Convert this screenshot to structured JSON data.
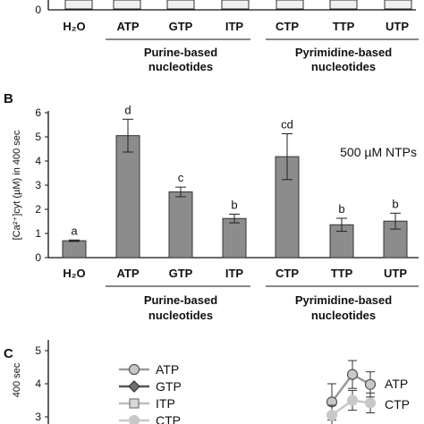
{
  "colors": {
    "bar_fill": "#8c8c8c",
    "bar_stroke": "#333333",
    "axis": "#111111",
    "line_gray": "#9a9a9a",
    "line_dark": "#555555"
  },
  "panel_a": {
    "categories": [
      "H₂O",
      "ATP",
      "GTP",
      "ITP",
      "CTP",
      "TTP",
      "UTP"
    ],
    "tick_0": "0",
    "group_purine": [
      "Purine-based",
      "nucleotides"
    ],
    "group_pyrimidine": [
      "Pyrimidine-based",
      "nucleotides"
    ]
  },
  "panel_b_label": "B",
  "panel_c_label": "C",
  "chart_data": [
    {
      "panel": "B",
      "type": "bar",
      "annotation": "500 µM NTPs",
      "ylabel": "[Ca²⁺]cyt (µM) in 400 sec",
      "ylim": [
        0,
        6
      ],
      "yticks": [
        "0",
        "1",
        "2",
        "3",
        "4",
        "5",
        "6"
      ],
      "categories": [
        "H₂O",
        "ATP",
        "GTP",
        "ITP",
        "CTP",
        "TTP",
        "UTP"
      ],
      "values": [
        0.7,
        5.05,
        2.72,
        1.62,
        4.18,
        1.36,
        1.51
      ],
      "errors": [
        0.03,
        0.68,
        0.2,
        0.18,
        0.95,
        0.27,
        0.33
      ],
      "letters": [
        "a",
        "d",
        "c",
        "b",
        "cd",
        "b",
        "b"
      ],
      "group_labels": [
        {
          "lines": [
            "Purine-based",
            "nucleotides"
          ]
        },
        {
          "lines": [
            "Pyrimidine-based",
            "nucleotides"
          ]
        }
      ]
    },
    {
      "panel": "C",
      "type": "line",
      "ylabel": "400 sec",
      "yticks": [
        "3",
        "4",
        "5"
      ],
      "ylim": [
        2.8,
        5.5
      ],
      "legend": [
        "ATP",
        "GTP",
        "ITP",
        "CTP"
      ],
      "series": [
        {
          "name": "ATP",
          "points": [
            {
              "y": 3.45,
              "err": 0.55
            },
            {
              "y": 4.28,
              "err": 0.42
            },
            {
              "y": 3.98,
              "err": 0.38
            }
          ]
        },
        {
          "name": "CTP",
          "points": [
            {
              "y": 3.05,
              "err": 0.3
            },
            {
              "y": 3.5,
              "err": 0.3
            },
            {
              "y": 3.42,
              "err": 0.3
            }
          ]
        }
      ],
      "end_labels": [
        "ATP",
        "CTP"
      ]
    }
  ]
}
